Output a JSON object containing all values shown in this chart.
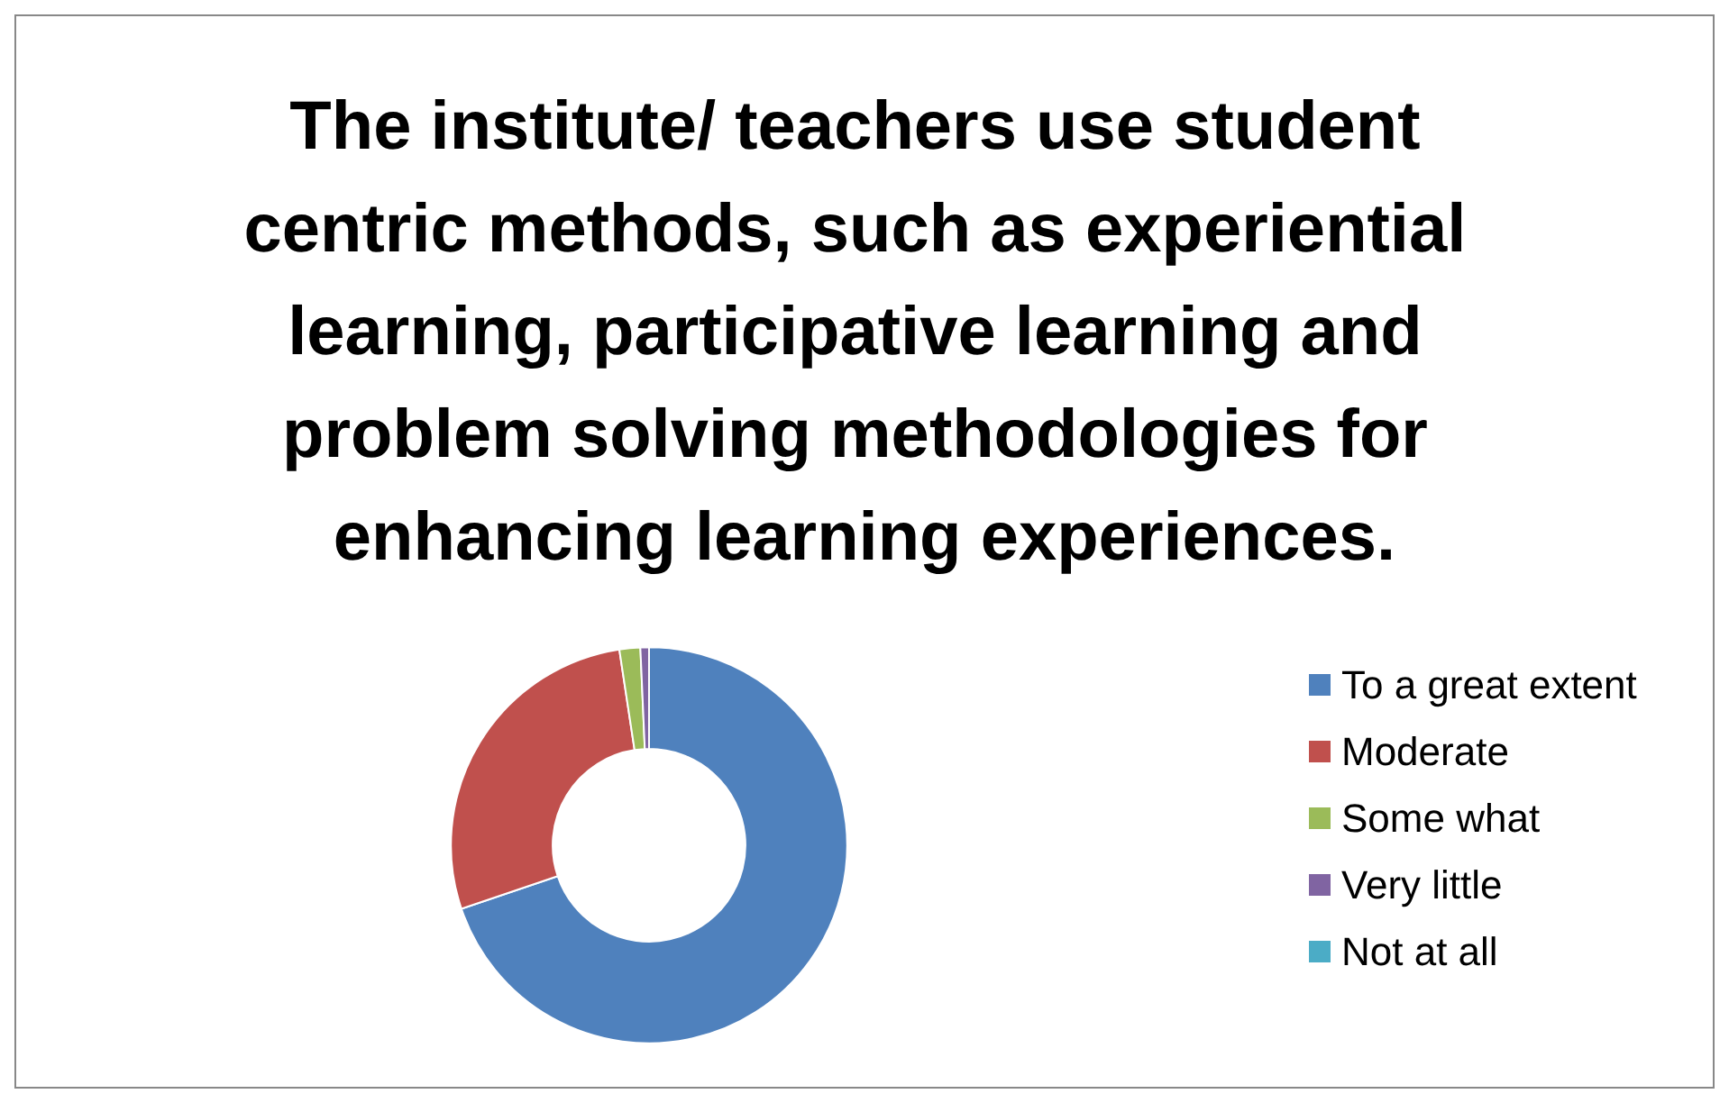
{
  "chart_data": {
    "type": "donut",
    "title": "The institute/ teachers use student centric methods, such as experiential learning, participative learning and problem solving methodologies for enhancing learning experiences.",
    "categories": [
      "To a great extent",
      "Moderate",
      "Some what",
      "Very little",
      "Not at all"
    ],
    "values": [
      69.8,
      27.8,
      1.7,
      0.7,
      0
    ],
    "colors": [
      "#4f81bd",
      "#c0504d",
      "#9bbb59",
      "#8064a2",
      "#4bacc6"
    ],
    "legend": "right"
  }
}
